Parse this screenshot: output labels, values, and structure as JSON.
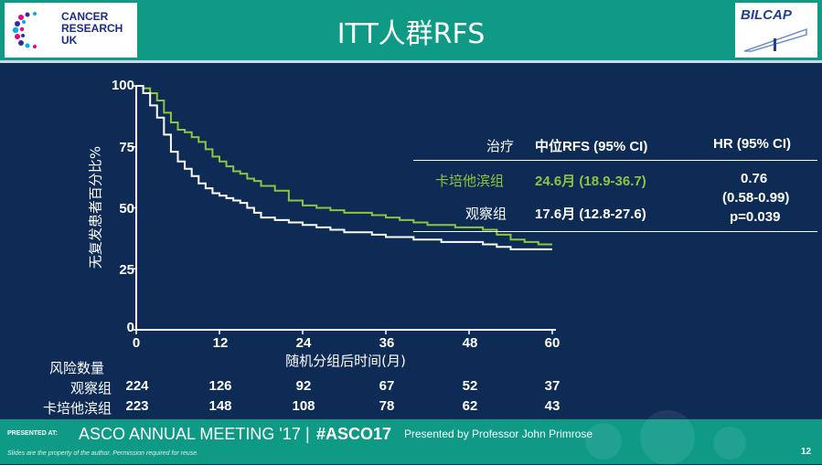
{
  "header": {
    "title": "ITT人群RFS",
    "left_logo": {
      "lines": [
        "CANCER",
        "RESEARCH",
        "UK"
      ]
    },
    "right_logo": {
      "text": "BILCAP"
    }
  },
  "stats_table": {
    "header": {
      "treatment": "治疗",
      "median": "中位RFS (95% CI)",
      "hr": "HR (95% CI)"
    },
    "rows": [
      {
        "treatment": "卡培他滨组",
        "median": "24.6月 (18.9-36.7)"
      },
      {
        "treatment": "观察组",
        "median": "17.6月 (12.8-27.6)"
      }
    ],
    "hr_value": "0.76",
    "hr_ci": "(0.58-0.99)",
    "p_value": "p=0.039"
  },
  "risk_table": {
    "title": "风险数量",
    "rows": [
      {
        "label": "观察组",
        "values": [
          "224",
          "126",
          "92",
          "67",
          "52",
          "37"
        ]
      },
      {
        "label": "卡培他滨组",
        "values": [
          "223",
          "148",
          "108",
          "78",
          "62",
          "43"
        ]
      }
    ]
  },
  "chart_data": {
    "type": "line",
    "title": "",
    "xlabel": "随机分组后时间(月)",
    "ylabel": "无复发患者百分比%",
    "xlim": [
      0,
      60
    ],
    "ylim": [
      0,
      100
    ],
    "x_ticks": [
      "0",
      "12",
      "24",
      "36",
      "48",
      "60"
    ],
    "y_ticks": [
      "0",
      "25",
      "50",
      "75",
      "100"
    ],
    "grid": false,
    "series": [
      {
        "name": "卡培他滨组",
        "color": "#8cc63f",
        "x": [
          0,
          1,
          2,
          3,
          4,
          5,
          6,
          7,
          8,
          9,
          10,
          11,
          12,
          13,
          14,
          15,
          16,
          17,
          18,
          20,
          22,
          24,
          26,
          28,
          30,
          32,
          34,
          36,
          38,
          40,
          42,
          44,
          46,
          48,
          50,
          52,
          54,
          56,
          58,
          60
        ],
        "y": [
          100,
          99,
          97,
          94,
          89,
          85,
          82,
          81,
          79,
          77,
          74,
          71,
          69,
          67,
          65,
          64,
          62,
          61,
          59,
          57,
          53,
          51,
          50,
          49,
          48,
          48,
          47,
          46,
          45,
          44,
          43,
          43,
          42,
          42,
          41,
          39,
          37,
          36,
          35,
          35
        ]
      },
      {
        "name": "观察组",
        "color": "#ffffff",
        "x": [
          0,
          1,
          2,
          3,
          4,
          5,
          6,
          7,
          8,
          9,
          10,
          11,
          12,
          13,
          14,
          15,
          16,
          17,
          18,
          20,
          22,
          24,
          26,
          28,
          30,
          32,
          34,
          36,
          38,
          40,
          42,
          44,
          46,
          48,
          50,
          52,
          54,
          56,
          58,
          60
        ],
        "y": [
          100,
          97,
          92,
          87,
          80,
          73,
          69,
          66,
          63,
          60,
          58,
          56,
          55,
          54,
          53,
          52,
          50,
          48,
          46,
          45,
          44,
          43,
          42,
          41,
          40,
          40,
          39,
          38,
          38,
          37,
          37,
          36,
          36,
          36,
          35,
          34,
          33,
          33,
          33,
          33
        ]
      }
    ]
  },
  "footer": {
    "presented_at": "PRESENTED AT:",
    "meeting": "ASCO ANNUAL MEETING '17",
    "separator": "|",
    "hashtag": "#ASCO17",
    "presenter": "Presented by Professor John Primrose",
    "disclaimer": "Slides are the property of the author. Permission required for reuse.",
    "page_number": "12"
  }
}
